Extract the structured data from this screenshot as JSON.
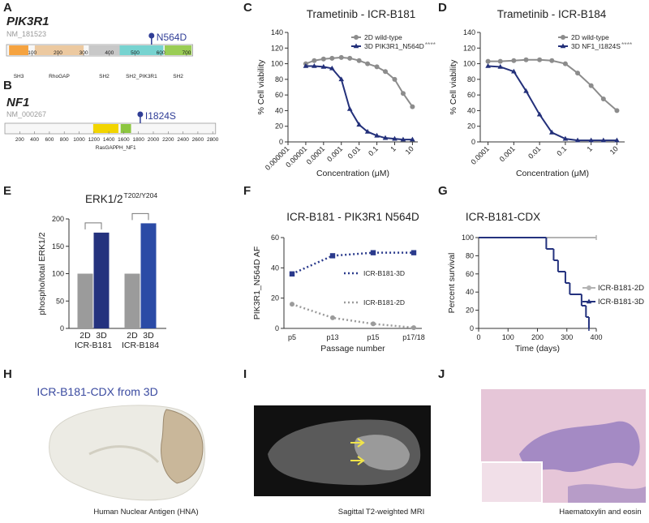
{
  "panel_letters": [
    "A",
    "B",
    "C",
    "D",
    "E",
    "F",
    "G",
    "H",
    "I",
    "J"
  ],
  "domain_maps": [
    {
      "title": "PIK3R1",
      "accession": "NM_181523",
      "length": 724,
      "ticks": [
        100,
        200,
        300,
        400,
        500,
        600,
        700
      ],
      "domains": [
        {
          "label": "SH3",
          "start": 10,
          "end": 85,
          "color": "#f5a340"
        },
        {
          "label": "RhoGAP",
          "start": 110,
          "end": 300,
          "color": "#ecc9a0"
        },
        {
          "label": "SH2",
          "start": 320,
          "end": 440,
          "color": "#c8c8c8"
        },
        {
          "label": "SH2_PIK3R1",
          "start": 440,
          "end": 610,
          "color": "#77d3d0"
        },
        {
          "label": "SH2",
          "start": 615,
          "end": 720,
          "color": "#9acd55"
        }
      ],
      "mutation": {
        "label": "N564D",
        "position": 564
      }
    },
    {
      "title": "NF1",
      "accession": "NM_000267",
      "length": 2839,
      "ticks": [
        200,
        400,
        600,
        800,
        1000,
        1200,
        1400,
        1600,
        1800,
        2000,
        2200,
        2400,
        2600,
        2800
      ],
      "domains": [
        {
          "label": "RasGAP",
          "start": 1190,
          "end": 1530,
          "color": "#f2d500"
        },
        {
          "label": "PH_NF1",
          "start": 1560,
          "end": 1700,
          "color": "#8cc63f"
        }
      ],
      "mutation": {
        "label": "I1824S",
        "position": 1824
      }
    }
  ],
  "chart_data": [
    {
      "type": "scatter",
      "title": "Trametinib - ICR-B181",
      "x_label": "Concentration (μM)",
      "y_label": "% Cell viability",
      "xscale": "log",
      "xlim": [
        1e-06,
        20
      ],
      "xticks": [
        1e-06,
        1e-05,
        0.0001,
        0.001,
        0.01,
        0.1,
        1,
        10
      ],
      "ylim": [
        0,
        140
      ],
      "yticks": [
        0,
        20,
        40,
        60,
        80,
        100,
        120,
        140
      ],
      "legend": "upper right",
      "x": [
        1e-05,
        3e-05,
        0.0001,
        0.0003,
        0.001,
        0.003,
        0.01,
        0.03,
        0.1,
        0.3,
        1,
        3,
        10
      ],
      "series": [
        {
          "name": "2D wild-type",
          "color": "#8c8c8c",
          "marker": "circle",
          "values": [
            100,
            104,
            106,
            107,
            108,
            107,
            104,
            100,
            96,
            90,
            80,
            62,
            45
          ]
        },
        {
          "name": "3D PIK3R1_N564D",
          "significance": "****",
          "color": "#23307a",
          "marker": "triangle",
          "values": [
            97,
            97,
            96,
            94,
            80,
            42,
            22,
            13,
            8,
            5,
            4,
            3,
            3
          ]
        }
      ]
    },
    {
      "type": "scatter",
      "title": "Trametinib - ICR-B184",
      "x_label": "Concentration (μM)",
      "y_label": "% Cell viability",
      "xscale": "log",
      "xlim": [
        5e-05,
        20
      ],
      "xticks": [
        0.0001,
        0.001,
        0.01,
        0.1,
        1,
        10
      ],
      "ylim": [
        0,
        140
      ],
      "yticks": [
        0,
        20,
        40,
        60,
        80,
        100,
        120,
        140
      ],
      "legend": "upper right",
      "x": [
        0.0001,
        0.0003,
        0.001,
        0.003,
        0.01,
        0.03,
        0.1,
        0.3,
        1,
        3,
        10
      ],
      "series": [
        {
          "name": "2D wild-type",
          "color": "#8c8c8c",
          "marker": "circle",
          "values": [
            103,
            103,
            104,
            105,
            105,
            104,
            100,
            88,
            72,
            55,
            40
          ]
        },
        {
          "name": "3D NF1_I1824S",
          "significance": "****",
          "color": "#23307a",
          "marker": "triangle",
          "values": [
            97,
            96,
            90,
            65,
            35,
            12,
            4,
            2,
            2,
            2,
            2
          ]
        }
      ]
    },
    {
      "type": "bar",
      "title": "ERK1/2",
      "title_superscript": "T202/Y204",
      "y_label": "phospho/total ERK1/2",
      "ylim": [
        0,
        200
      ],
      "yticks": [
        0,
        50,
        100,
        150,
        200
      ],
      "categories": [
        "2D",
        "3D",
        "2D",
        "3D"
      ],
      "groups": [
        "ICR-B181",
        "ICR-B184"
      ],
      "values": [
        100,
        175,
        100,
        192
      ],
      "colors": [
        "#9b9b9b",
        "#24327e",
        "#9b9b9b",
        "#2b4ba6"
      ]
    },
    {
      "type": "line",
      "title": "ICR-B181 - PIK3R1 N564D",
      "x_label": "Passage number",
      "y_label": "PIK3R1_N564D AF",
      "categories": [
        "p5",
        "p13",
        "p15",
        "p17/18"
      ],
      "ylim": [
        0,
        60
      ],
      "yticks": [
        0,
        20,
        40,
        60
      ],
      "series": [
        {
          "name": "ICR-B181-3D",
          "color": "#2a3a8c",
          "marker": "square",
          "values": [
            36,
            48,
            50,
            50
          ]
        },
        {
          "name": "ICR-B181-2D",
          "color": "#9b9b9b",
          "marker": "circle",
          "values": [
            16,
            7,
            3,
            0.5
          ]
        }
      ]
    },
    {
      "type": "step",
      "title": "ICR-B181-CDX",
      "x_label": "Time (days)",
      "y_label": "Percent survival",
      "xlim": [
        0,
        400
      ],
      "xticks": [
        0,
        100,
        200,
        300,
        400
      ],
      "ylim": [
        0,
        100
      ],
      "yticks": [
        0,
        20,
        40,
        60,
        80,
        100
      ],
      "series": [
        {
          "name": "ICR-B181-2D",
          "color": "#b3b3b3",
          "marker": "circle",
          "x": [
            0,
            400
          ],
          "values": [
            100,
            100
          ]
        },
        {
          "name": "ICR-B181-3D",
          "color": "#24327e",
          "marker": "triangle",
          "x": [
            0,
            230,
            255,
            270,
            295,
            310,
            350,
            365,
            375
          ],
          "values": [
            100,
            87.5,
            75,
            62.5,
            50,
            37.5,
            25,
            12.5,
            0
          ]
        }
      ]
    }
  ],
  "images": [
    {
      "title": "ICR-B181-CDX from 3D",
      "caption": "Human Nuclear Antigen (HNA)"
    },
    {
      "caption": "Sagittal T2-weighted MRI"
    },
    {
      "caption": "Haematoxylin and eosin"
    }
  ]
}
